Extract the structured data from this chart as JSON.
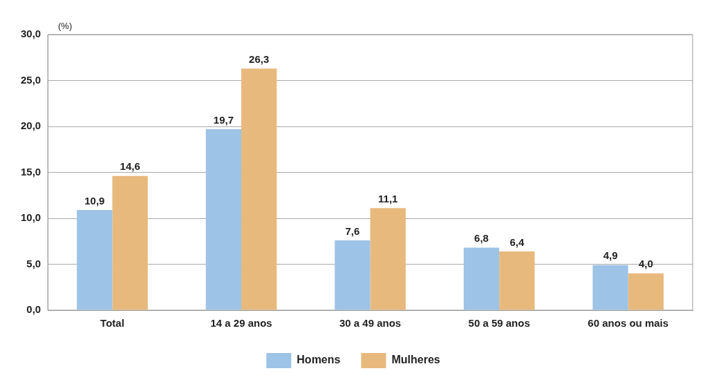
{
  "chart_data": {
    "type": "bar",
    "ylabel": "(%)",
    "categories": [
      "Total",
      "14 a 29 anos",
      "30 a 49 anos",
      "50 a 59 anos",
      "60 anos ou mais"
    ],
    "series": [
      {
        "name": "Homens",
        "color": "#9dc3e6",
        "values": [
          10.9,
          19.7,
          7.6,
          6.8,
          4.9
        ],
        "value_labels": [
          "10,9",
          "19,7",
          "7,6",
          "6,8",
          "4,9"
        ]
      },
      {
        "name": "Mulheres",
        "color": "#e8b97d",
        "values": [
          14.6,
          26.3,
          11.1,
          6.4,
          4.0
        ],
        "value_labels": [
          "14,6",
          "26,3",
          "11,1",
          "6,4",
          "4,0"
        ]
      }
    ],
    "ylim": [
      0,
      30
    ],
    "yticks": [
      {
        "value": 0,
        "label": "0,0"
      },
      {
        "value": 5,
        "label": "5,0"
      },
      {
        "value": 10,
        "label": "10,0"
      },
      {
        "value": 15,
        "label": "15,0"
      },
      {
        "value": 20,
        "label": "20,0"
      },
      {
        "value": 25,
        "label": "25,0"
      },
      {
        "value": 30,
        "label": "30,0"
      }
    ],
    "grid": "y",
    "legend": "bottom"
  }
}
